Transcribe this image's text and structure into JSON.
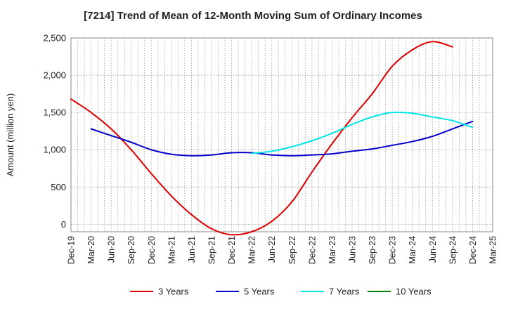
{
  "chart_data": {
    "type": "line",
    "title": "[7214]  Trend of Mean of 12-Month Moving Sum of Ordinary Incomes",
    "xlabel": "",
    "ylabel": "Amount (million yen)",
    "ylim": [
      -100,
      2500
    ],
    "yticks": [
      0,
      500,
      1000,
      1500,
      2000,
      2500
    ],
    "ytick_labels": [
      "0",
      "500",
      "1,000",
      "1,500",
      "2,000",
      "2,500"
    ],
    "xtick_labels": [
      "Dec-19",
      "Mar-20",
      "Jun-20",
      "Sep-20",
      "Dec-20",
      "Mar-21",
      "Jun-21",
      "Sep-21",
      "Dec-21",
      "Mar-22",
      "Jun-22",
      "Sep-22",
      "Dec-22",
      "Mar-23",
      "Jun-23",
      "Sep-23",
      "Dec-23",
      "Mar-24",
      "Jun-24",
      "Sep-24",
      "Dec-24",
      "Mar-25"
    ],
    "grid": true,
    "legend_position": "bottom",
    "series": [
      {
        "name": "3 Years",
        "color": "#dd0000",
        "start_index": 0,
        "values": [
          1680,
          1500,
          1280,
          1000,
          680,
          380,
          130,
          -60,
          -140,
          -100,
          40,
          300,
          700,
          1080,
          1430,
          1750,
          2120,
          2340,
          2450,
          2380
        ]
      },
      {
        "name": "5 Years",
        "color": "#0000cc",
        "start_index": 1,
        "values": [
          1280,
          1190,
          1100,
          1000,
          940,
          920,
          930,
          960,
          960,
          930,
          920,
          930,
          945,
          980,
          1010,
          1060,
          1110,
          1180,
          1280,
          1380
        ]
      },
      {
        "name": "7 Years",
        "color": "#00e5e5",
        "start_index": 9,
        "values": [
          950,
          980,
          1040,
          1120,
          1220,
          1340,
          1440,
          1500,
          1490,
          1440,
          1390,
          1300
        ]
      },
      {
        "name": "10 Years",
        "color": "#008000",
        "start_index": 0,
        "values": []
      }
    ]
  }
}
